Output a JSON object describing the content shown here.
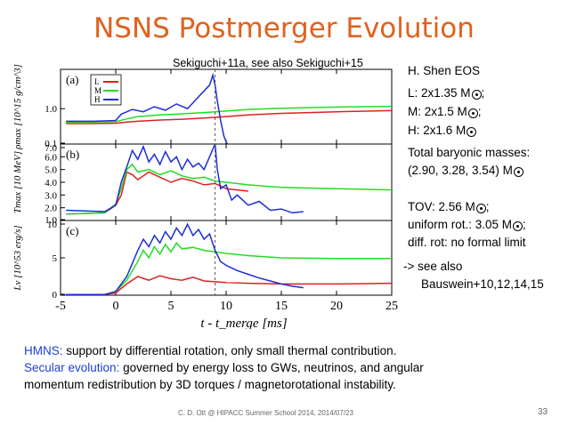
{
  "slide": {
    "title": "NSNS Postmerger Evolution",
    "citation": "Sekiguchi+11a, see also Sekiguchi+15",
    "eos": "H. Shen EOS",
    "models": [
      {
        "label": "L: 2x1.35 M",
        "suffix": ";"
      },
      {
        "label": "M: 2x1.5 M",
        "suffix": ";"
      },
      {
        "label": "H: 2x1.6 M",
        "suffix": ""
      }
    ],
    "masses_line1": "Total baryonic masses:",
    "masses_line2": "(2.90, 3.28, 3.54) M",
    "tov_line": "TOV:  2.56 M",
    "tov_suffix": ";",
    "uniform_line": "uniform rot.: 3.05 M",
    "uniform_suffix": ";",
    "diff_line": "diff. rot: no formal limit",
    "see_also_1": "-> see also",
    "see_also_2": "Bauswein+10,12,14,15",
    "hmns_key": "HMNS:",
    "hmns_text": " support by differential rotation, only small thermal contribution.",
    "secular_key": "Secular evolution:",
    "secular_text": " governed by energy loss to GWs, neutrinos, and angular",
    "secular_text2": "momentum redistribution by 3D torques / magnetorotational instability.",
    "footer": "C. D. Ott @ HIPACC Summer School 2014, 2014/07/23",
    "page": "33"
  },
  "chart_data": {
    "type": "line",
    "xlabel": "t - t_merge [ms]",
    "xlim": [
      -5,
      25
    ],
    "xticks": [
      "-5",
      "0",
      "5",
      "10",
      "15",
      "20",
      "25"
    ],
    "merger_marker_x": 9,
    "legend": [
      "L",
      "M",
      "H"
    ],
    "colors": {
      "L": "#e02020",
      "M": "#22dd22",
      "H": "#1a2fd6"
    },
    "panels": [
      {
        "label": "(a)",
        "ylabel": "ρmax [10^15 g/cm^3]",
        "ylim": [
          0.1,
          2.0
        ],
        "yticks": [
          "1.0",
          "0.1"
        ],
        "series": [
          {
            "name": "L",
            "x": [
              -4.5,
              -2,
              0,
              1,
              2,
              4,
              6,
              8,
              10,
              12,
              15,
              20,
              25
            ],
            "y": [
              0.62,
              0.62,
              0.63,
              0.66,
              0.68,
              0.71,
              0.73,
              0.76,
              0.8,
              0.84,
              0.88,
              0.92,
              0.95
            ]
          },
          {
            "name": "M",
            "x": [
              -4.5,
              -2,
              0,
              1,
              2,
              4,
              6,
              8,
              10,
              12,
              15,
              20,
              25
            ],
            "y": [
              0.66,
              0.66,
              0.67,
              0.74,
              0.8,
              0.84,
              0.87,
              0.9,
              0.94,
              0.98,
              1.01,
              1.04,
              1.06
            ]
          },
          {
            "name": "H",
            "x": [
              -4.5,
              -2,
              0,
              0.5,
              1.5,
              2.5,
              3.5,
              4.5,
              5.5,
              6.5,
              7.5,
              8,
              8.5,
              8.8,
              9.0,
              9.2,
              9.5,
              9.8,
              10.1
            ],
            "y": [
              0.68,
              0.68,
              0.7,
              0.86,
              0.98,
              0.92,
              1.05,
              0.96,
              1.12,
              1.0,
              1.3,
              1.45,
              1.6,
              1.85,
              1.6,
              1.2,
              0.7,
              0.3,
              0.1
            ]
          }
        ]
      },
      {
        "label": "(b)",
        "ylabel": "Tmax [10 MeV]",
        "ylim": [
          1.0,
          7.0
        ],
        "yticks": [
          "1.0",
          "2.0",
          "3.0",
          "4.0",
          "5.0",
          "6.0",
          "7.0"
        ],
        "series": [
          {
            "name": "L",
            "x": [
              -4.5,
              -1,
              0,
              0.5,
              1,
              1.5,
              2,
              3,
              4,
              5,
              6,
              7,
              8,
              9,
              10,
              11,
              12
            ],
            "y": [
              1.5,
              1.6,
              2.2,
              3.0,
              4.8,
              4.6,
              4.2,
              4.8,
              4.4,
              4.0,
              4.3,
              4.1,
              3.8,
              3.9,
              3.5,
              3.4,
              3.3
            ]
          },
          {
            "name": "M",
            "x": [
              -4.5,
              -1,
              0,
              0.5,
              1,
              1.5,
              2,
              3,
              4,
              5,
              6,
              7,
              8,
              9,
              10,
              12,
              15,
              20,
              25
            ],
            "y": [
              1.5,
              1.6,
              2.3,
              3.5,
              5.0,
              5.4,
              4.8,
              5.0,
              4.6,
              4.9,
              4.5,
              4.3,
              4.4,
              4.1,
              4.0,
              3.8,
              3.6,
              3.5,
              3.4
            ]
          },
          {
            "name": "H",
            "x": [
              -4.5,
              -1,
              0,
              0.5,
              1,
              1.5,
              2,
              2.5,
              3,
              3.5,
              4,
              4.5,
              5,
              5.5,
              6,
              6.5,
              7,
              7.5,
              8,
              8.5,
              9,
              9.2,
              9.5,
              10,
              10.5,
              11,
              12,
              13,
              14,
              15,
              16,
              17
            ],
            "y": [
              1.8,
              1.7,
              2.2,
              4.0,
              5.2,
              6.5,
              5.8,
              6.8,
              5.6,
              6.2,
              5.4,
              6.4,
              5.6,
              6.0,
              5.0,
              5.8,
              5.2,
              5.5,
              5.0,
              6.0,
              7.0,
              5.0,
              3.5,
              3.8,
              2.6,
              3.0,
              2.2,
              2.5,
              1.8,
              1.9,
              1.6,
              1.7
            ]
          }
        ]
      },
      {
        "label": "(c)",
        "ylabel": "Lν [10^53 erg/s]",
        "ylim": [
          0,
          10
        ],
        "yticks": [
          "0",
          "5",
          "10"
        ],
        "series": [
          {
            "name": "L",
            "x": [
              -4.5,
              -1,
              0,
              1,
              2,
              3,
              4,
              5,
              6,
              7,
              8,
              9,
              10,
              12,
              15,
              20,
              25
            ],
            "y": [
              0.1,
              0.1,
              0.3,
              1.5,
              2.5,
              2.0,
              2.6,
              2.2,
              2.0,
              2.4,
              1.9,
              1.8,
              1.7,
              1.6,
              1.5,
              1.5,
              1.6
            ]
          },
          {
            "name": "M",
            "x": [
              -4.5,
              -1,
              0,
              1,
              2,
              2.5,
              3,
              3.5,
              4,
              4.5,
              5,
              5.5,
              6,
              7,
              8,
              9,
              10,
              12,
              15,
              20,
              25
            ],
            "y": [
              0.1,
              0.1,
              0.5,
              2.0,
              4.5,
              6.0,
              5.0,
              6.5,
              5.5,
              6.8,
              5.8,
              7.0,
              6.2,
              6.4,
              6.0,
              5.8,
              5.6,
              5.3,
              5.0,
              4.9,
              4.9
            ]
          },
          {
            "name": "H",
            "x": [
              -4.5,
              -1,
              0,
              1,
              2,
              2.5,
              3,
              3.5,
              4,
              4.5,
              5,
              5.5,
              6,
              6.5,
              7,
              7.5,
              8,
              8.5,
              9,
              9.5,
              10,
              11,
              12,
              13,
              14,
              15,
              16,
              17
            ],
            "y": [
              0.1,
              0.1,
              0.5,
              2.5,
              6.0,
              7.5,
              6.5,
              8.0,
              7.0,
              8.5,
              7.5,
              9.0,
              8.0,
              9.5,
              8.0,
              8.8,
              7.5,
              8.2,
              6.0,
              4.5,
              4.0,
              3.3,
              2.8,
              2.3,
              1.9,
              1.5,
              1.2,
              1.0
            ]
          }
        ]
      }
    ]
  }
}
